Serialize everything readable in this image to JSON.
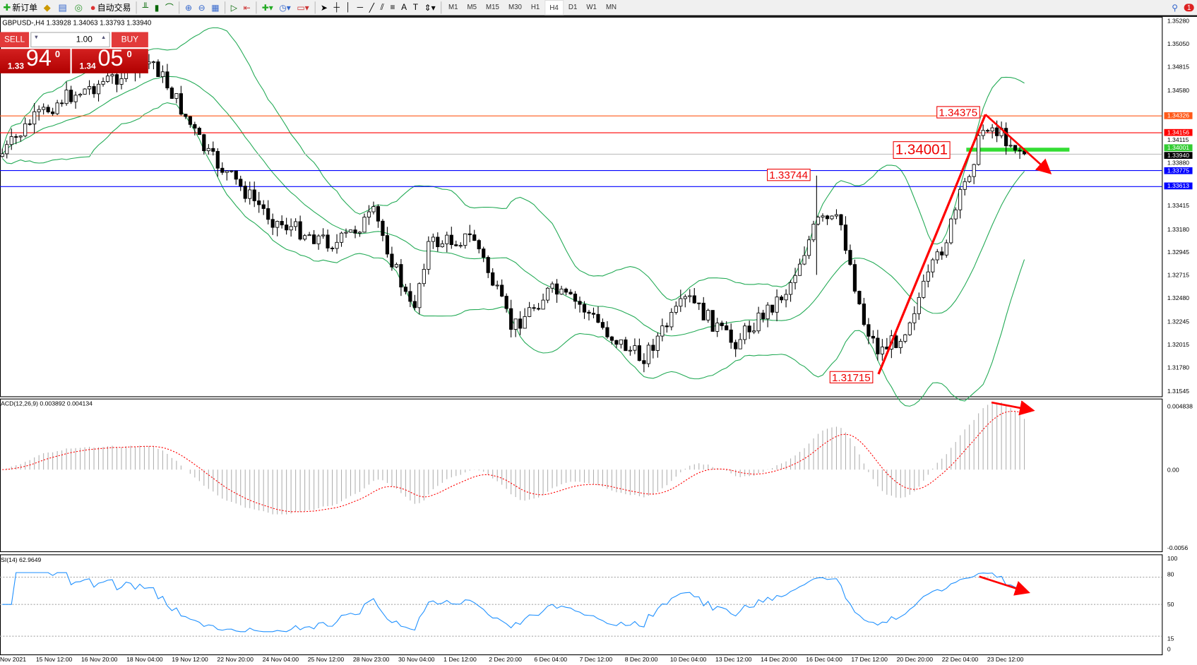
{
  "toolbar": {
    "new_order": "新订单",
    "auto_trading": "自动交易",
    "timeframes": [
      "M1",
      "M5",
      "M15",
      "M30",
      "H1",
      "H4",
      "D1",
      "W1",
      "MN"
    ],
    "active_timeframe": "H4",
    "notification_count": "1"
  },
  "chart": {
    "symbol_header": "GBPUSD-,H4  1.33928 1.34063 1.33793 1.33940",
    "trade_panel": {
      "sell": "SELL",
      "buy": "BUY",
      "lot": "1.00",
      "sell_prefix": "1.33",
      "sell_big": "94",
      "sell_digit": "0",
      "buy_prefix": "1.34",
      "buy_big": "05",
      "buy_digit": "0"
    },
    "price_axis": [
      "1.35280",
      "1.35050",
      "1.34815",
      "1.34580",
      "1.34115",
      "1.33880",
      "1.33415",
      "1.33180",
      "1.32945",
      "1.32715",
      "1.32480",
      "1.32245",
      "1.32015",
      "1.31780",
      "1.31545"
    ],
    "price_tags": [
      {
        "text": "1.34326",
        "color": "#ff5a1a"
      },
      {
        "text": "1.34156",
        "color": "#ff0000"
      },
      {
        "text": "1.34001",
        "color": "#33cc33"
      },
      {
        "text": "1.33940",
        "color": "#000000"
      },
      {
        "text": "1.33775",
        "color": "#0000ff"
      },
      {
        "text": "1.33613",
        "color": "#0000ff"
      }
    ],
    "annotations": [
      "1.34375",
      "1.34001",
      "1.33744",
      "1.31715"
    ]
  },
  "macd": {
    "label": "ACD(12,26,9) 0.003892 0.004134",
    "axis": [
      "0.004838",
      "0.00",
      "-0.0056"
    ]
  },
  "rsi": {
    "label": "SI(14) 62.9649",
    "axis": [
      "100",
      "80",
      "50",
      "15",
      "0"
    ]
  },
  "dates": [
    "Nov 2021",
    "15 Nov 12:00",
    "16 Nov 20:00",
    "18 Nov 04:00",
    "19 Nov 12:00",
    "22 Nov 20:00",
    "24 Nov 04:00",
    "25 Nov 12:00",
    "28 Nov 23:00",
    "30 Nov 04:00",
    "1 Dec 12:00",
    "2 Dec 20:00",
    "6 Dec 04:00",
    "7 Dec 12:00",
    "8 Dec 20:00",
    "10 Dec 04:00",
    "13 Dec 12:00",
    "14 Dec 20:00",
    "16 Dec 04:00",
    "17 Dec 12:00",
    "20 Dec 20:00",
    "22 Dec 04:00",
    "23 Dec 12:00"
  ],
  "colors": {
    "bands": "#22aa55",
    "rsi": "#1e90ff",
    "signal": "#ff0000",
    "annotation": "#ff0000"
  }
}
